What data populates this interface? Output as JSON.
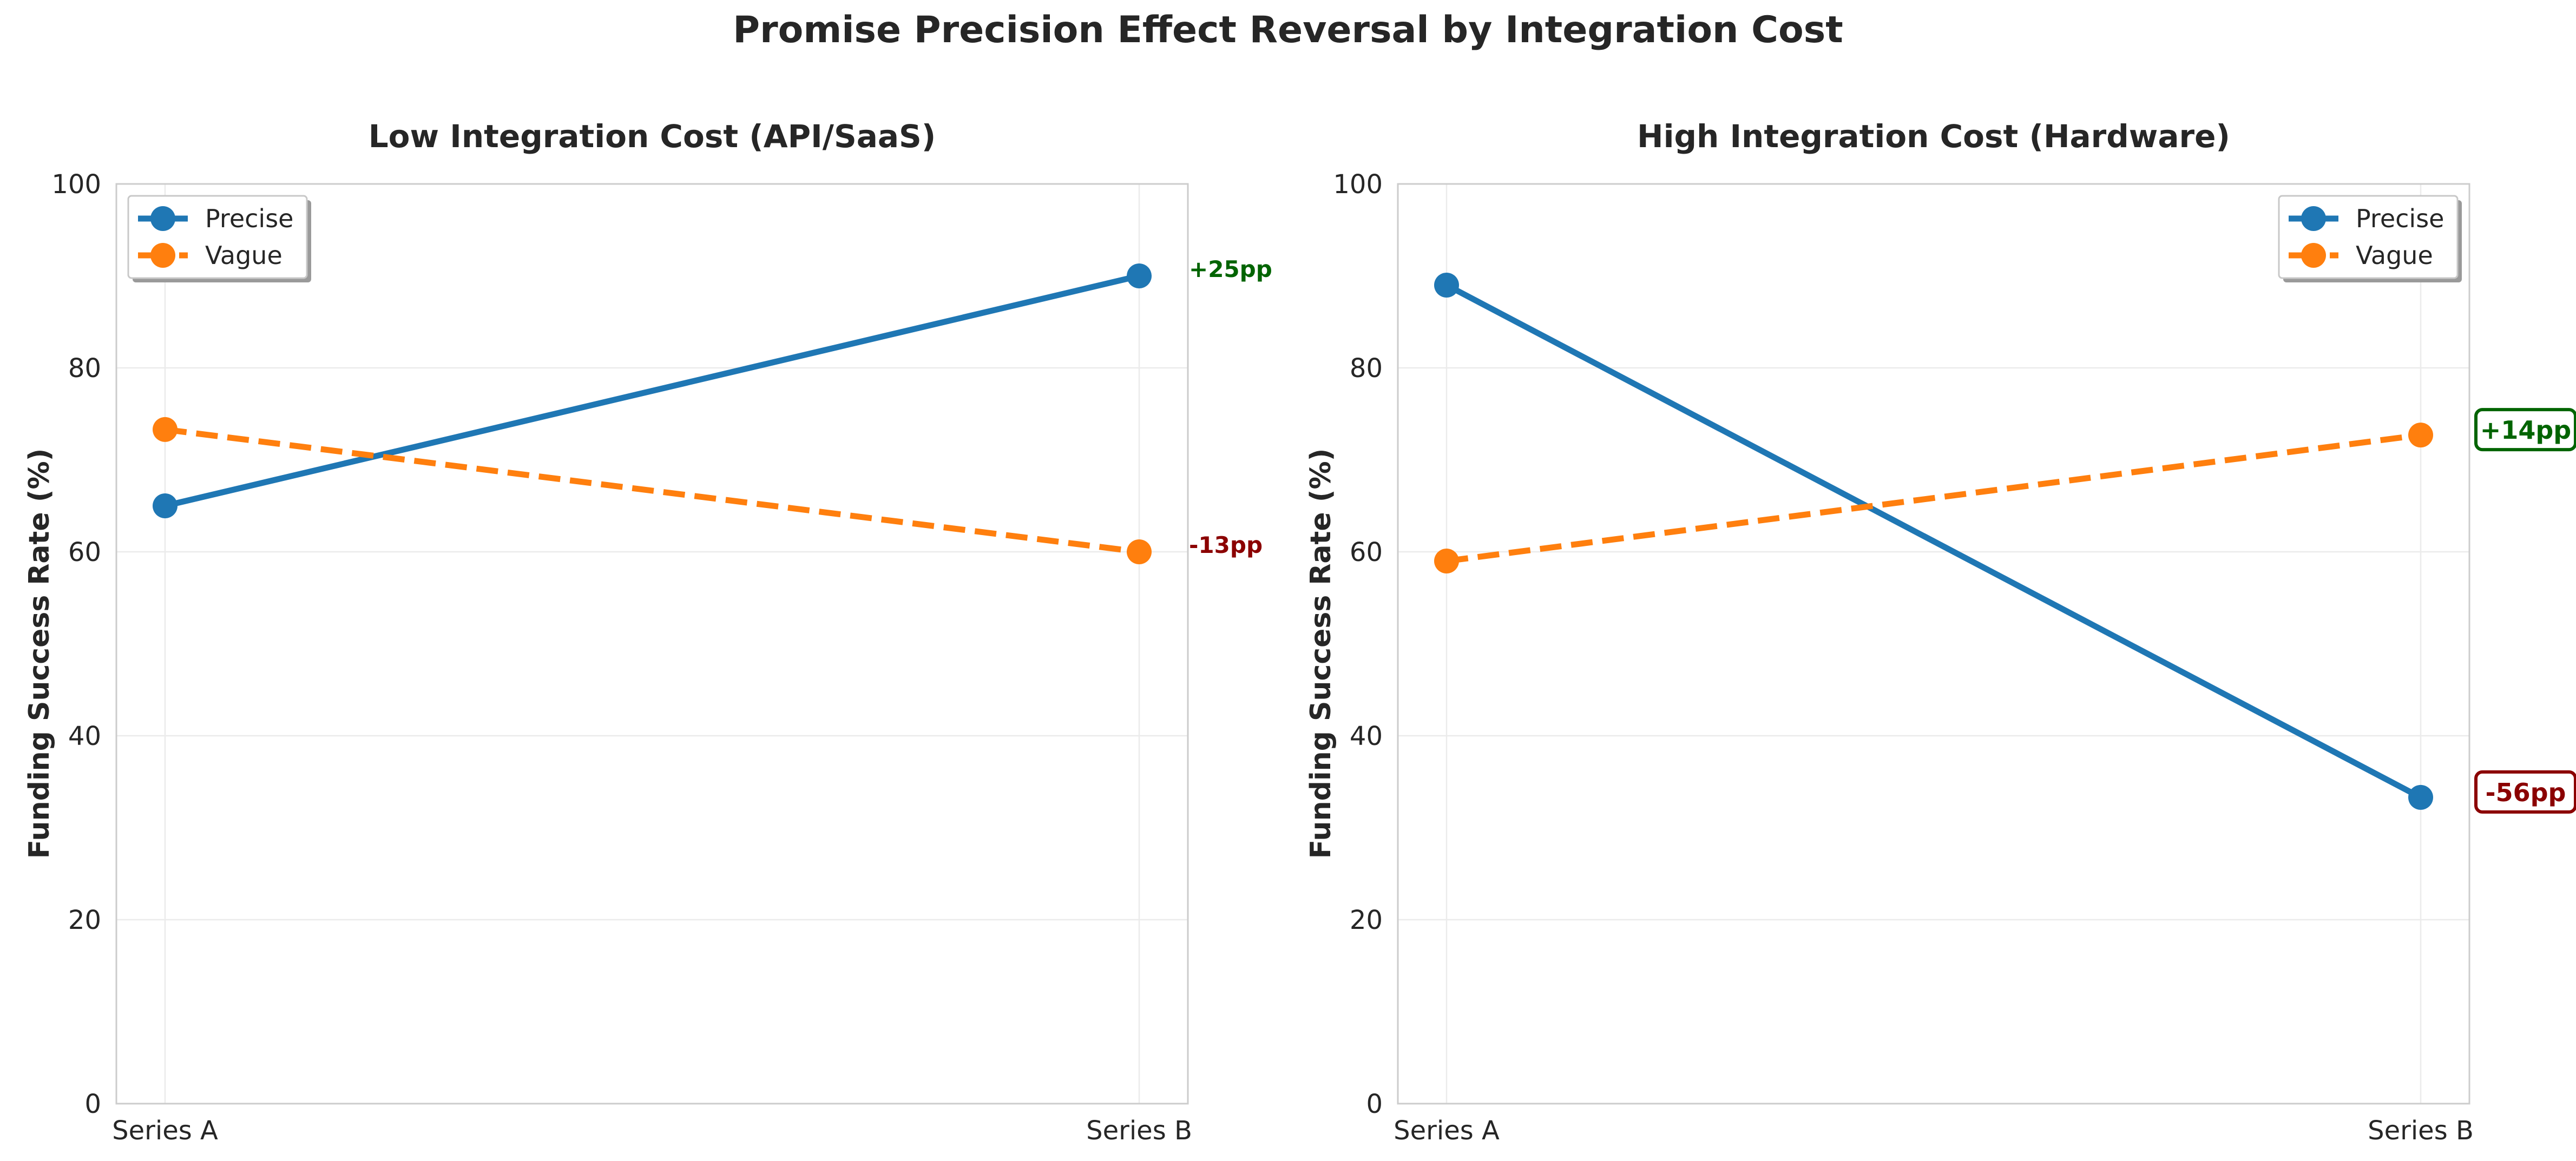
{
  "figure": {
    "title": "Promise Precision Effect Reversal by Integration Cost"
  },
  "colors": {
    "precise": "#1f77b4",
    "vague": "#ff7f0e",
    "positive": "#006400",
    "negative": "#8b0000",
    "grid": "#ebebeb",
    "spine": "#cccccc"
  },
  "chart_data": [
    {
      "type": "line",
      "title": "Low Integration Cost (API/SaaS)",
      "xlabel": "",
      "ylabel": "Funding Success Rate (%)",
      "categories": [
        "Series A",
        "Series B"
      ],
      "ylim": [
        0,
        100
      ],
      "yticks": [
        "0",
        "20",
        "40",
        "60",
        "80",
        "100"
      ],
      "grid": true,
      "legend_position": "upper-left",
      "series": [
        {
          "name": "Precise",
          "values": [
            65,
            90
          ],
          "style": "solid",
          "color": "#1f77b4"
        },
        {
          "name": "Vague",
          "values": [
            73.3,
            60
          ],
          "style": "dashed",
          "color": "#ff7f0e"
        }
      ],
      "annotations": [
        {
          "text": "+25pp",
          "series": 0,
          "boxed": false,
          "color": "#006400"
        },
        {
          "text": "-13pp",
          "series": 1,
          "boxed": false,
          "color": "#8b0000"
        }
      ]
    },
    {
      "type": "line",
      "title": "High Integration Cost (Hardware)",
      "xlabel": "",
      "ylabel": "Funding Success Rate (%)",
      "categories": [
        "Series A",
        "Series B"
      ],
      "ylim": [
        0,
        100
      ],
      "yticks": [
        "0",
        "20",
        "40",
        "60",
        "80",
        "100"
      ],
      "grid": true,
      "legend_position": "upper-right",
      "series": [
        {
          "name": "Precise",
          "values": [
            89,
            33.3
          ],
          "style": "solid",
          "color": "#1f77b4"
        },
        {
          "name": "Vague",
          "values": [
            59,
            72.7
          ],
          "style": "dashed",
          "color": "#ff7f0e"
        }
      ],
      "annotations": [
        {
          "text": "+14pp",
          "series": 1,
          "boxed": true,
          "color": "#006400"
        },
        {
          "text": "-56pp",
          "series": 0,
          "boxed": true,
          "color": "#8b0000"
        }
      ]
    }
  ]
}
